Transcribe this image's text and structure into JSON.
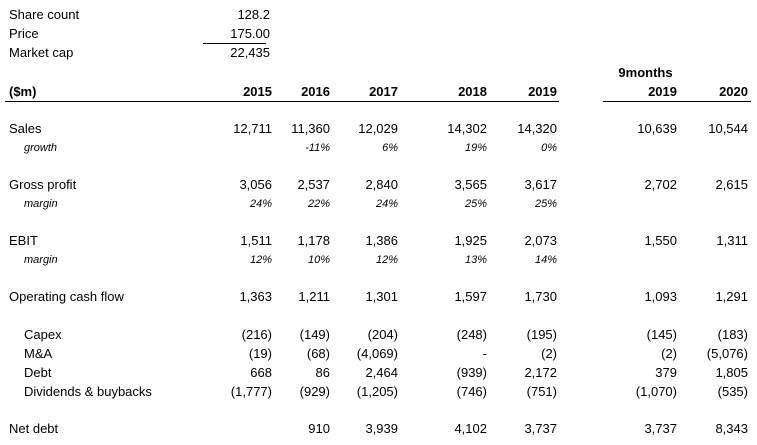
{
  "summary": {
    "share_count": {
      "label": "Share count",
      "value": "128.2"
    },
    "price": {
      "label": "Price",
      "value": "175.00"
    },
    "market_cap": {
      "label": "Market cap",
      "value": "22,435"
    }
  },
  "header": {
    "unit": "($m)",
    "years": [
      "2015",
      "2016",
      "2017",
      "2018",
      "2019"
    ],
    "period_label": "9months",
    "period_years": [
      "2019",
      "2020"
    ]
  },
  "rows": [
    {
      "id": "sales",
      "label": "Sales",
      "values": [
        "12,711",
        "11,360",
        "12,029",
        "14,302",
        "14,320"
      ],
      "period": [
        "10,639",
        "10,544"
      ]
    },
    {
      "id": "sales-growth",
      "label": "growth",
      "values": [
        "",
        "-11%",
        "6%",
        "19%",
        "0%"
      ],
      "period": [
        "",
        ""
      ]
    },
    {
      "id": "gross-profit",
      "label": "Gross profit",
      "values": [
        "3,056",
        "2,537",
        "2,840",
        "3,565",
        "3,617"
      ],
      "period": [
        "2,702",
        "2,615"
      ]
    },
    {
      "id": "gross-margin",
      "label": "margin",
      "values": [
        "24%",
        "22%",
        "24%",
        "25%",
        "25%"
      ],
      "period": [
        "",
        ""
      ]
    },
    {
      "id": "ebit",
      "label": "EBIT",
      "values": [
        "1,511",
        "1,178",
        "1,386",
        "1,925",
        "2,073"
      ],
      "period": [
        "1,550",
        "1,311"
      ]
    },
    {
      "id": "ebit-margin",
      "label": "margin",
      "values": [
        "12%",
        "10%",
        "12%",
        "13%",
        "14%"
      ],
      "period": [
        "",
        ""
      ]
    },
    {
      "id": "operating-cash-flow",
      "label": "Operating cash flow",
      "values": [
        "1,363",
        "1,211",
        "1,301",
        "1,597",
        "1,730"
      ],
      "period": [
        "1,093",
        "1,291"
      ]
    },
    {
      "id": "capex",
      "label": "Capex",
      "values": [
        "(216)",
        "(149)",
        "(204)",
        "(248)",
        "(195)"
      ],
      "period": [
        "(145)",
        "(183)"
      ]
    },
    {
      "id": "m-and-a",
      "label": "M&A",
      "values": [
        "(19)",
        "(68)",
        "(4,069)",
        "-",
        "(2)"
      ],
      "period": [
        "(2)",
        "(5,076)"
      ]
    },
    {
      "id": "debt",
      "label": "Debt",
      "values": [
        "668",
        "86",
        "2,464",
        "(939)",
        "2,172"
      ],
      "period": [
        "379",
        "1,805"
      ]
    },
    {
      "id": "dividends-buybacks",
      "label": "Dividends & buybacks",
      "values": [
        "(1,777)",
        "(929)",
        "(1,205)",
        "(746)",
        "(751)"
      ],
      "period": [
        "(1,070)",
        "(535)"
      ]
    },
    {
      "id": "net-debt",
      "label": "Net debt",
      "values": [
        "",
        "910",
        "3,939",
        "4,102",
        "3,737"
      ],
      "period": [
        "3,737",
        "8,343"
      ]
    }
  ]
}
